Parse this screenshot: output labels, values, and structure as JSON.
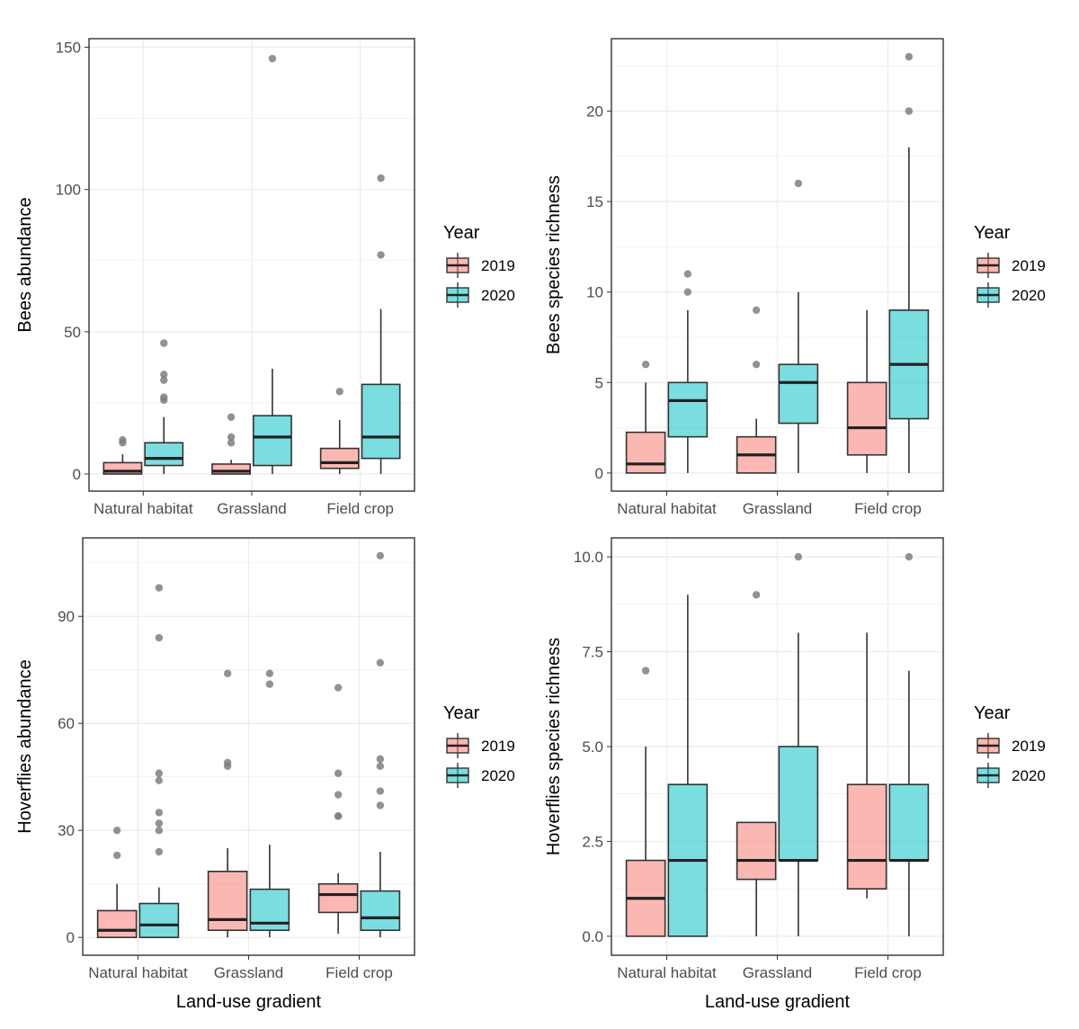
{
  "xlabel": "Land-use gradient",
  "colors": {
    "fill_2019": "#F8766D",
    "fill_2020": "#00BFC4",
    "outlier": "#7f7f7f",
    "grid": "#ebebeb",
    "panel_border": "#333333",
    "line": "#333333",
    "text": "#4d4d4d",
    "title_text": "#000000"
  },
  "chart_data": [
    {
      "type": "boxplot",
      "title": "",
      "ylabel": "Bees abundance",
      "xlabel": "",
      "categories": [
        "Natural habitat",
        "Grassland",
        "Field crop"
      ],
      "ylim": [
        -6,
        153
      ],
      "yticks": [
        0,
        50,
        100,
        150
      ],
      "ytick_labels": [
        "0",
        "50",
        "100",
        "150"
      ],
      "grid": true,
      "legend": {
        "title": "Year",
        "position": "right"
      },
      "series": [
        {
          "name": "2019",
          "boxes": [
            {
              "min": 0,
              "q1": 0,
              "median": 1,
              "q3": 4,
              "max": 7,
              "outliers": [
                11,
                12
              ]
            },
            {
              "min": 0,
              "q1": 0,
              "median": 1,
              "q3": 3.5,
              "max": 5,
              "outliers": [
                11,
                13,
                20
              ]
            },
            {
              "min": 0,
              "q1": 2,
              "median": 4,
              "q3": 9,
              "max": 19,
              "outliers": [
                29
              ]
            }
          ]
        },
        {
          "name": "2020",
          "boxes": [
            {
              "min": 0,
              "q1": 3,
              "median": 5.5,
              "q3": 11,
              "max": 20,
              "outliers": [
                26,
                27,
                33,
                35,
                46
              ]
            },
            {
              "min": 0,
              "q1": 3,
              "median": 13,
              "q3": 20.5,
              "max": 37,
              "outliers": [
                146
              ]
            },
            {
              "min": 0,
              "q1": 5.5,
              "median": 13,
              "q3": 31.5,
              "max": 58,
              "outliers": [
                77,
                104
              ]
            }
          ]
        }
      ]
    },
    {
      "type": "boxplot",
      "title": "",
      "ylabel": "Bees species richness",
      "xlabel": "",
      "categories": [
        "Natural habitat",
        "Grassland",
        "Field crop"
      ],
      "ylim": [
        -1,
        24
      ],
      "yticks": [
        0,
        5,
        10,
        15,
        20
      ],
      "ytick_labels": [
        "0",
        "5",
        "10",
        "15",
        "20"
      ],
      "grid": true,
      "legend": {
        "title": "Year",
        "position": "right"
      },
      "series": [
        {
          "name": "2019",
          "boxes": [
            {
              "min": 0,
              "q1": 0,
              "median": 0.5,
              "q3": 2.25,
              "max": 5,
              "outliers": [
                6
              ]
            },
            {
              "min": 0,
              "q1": 0,
              "median": 1,
              "q3": 2,
              "max": 3,
              "outliers": [
                6,
                9
              ]
            },
            {
              "min": 0,
              "q1": 1,
              "median": 2.5,
              "q3": 5,
              "max": 9,
              "outliers": []
            }
          ]
        },
        {
          "name": "2020",
          "boxes": [
            {
              "min": 0,
              "q1": 2,
              "median": 4,
              "q3": 5,
              "max": 9,
              "outliers": [
                10,
                11
              ]
            },
            {
              "min": 0,
              "q1": 2.75,
              "median": 5,
              "q3": 6,
              "max": 10,
              "outliers": [
                16
              ]
            },
            {
              "min": 0,
              "q1": 3,
              "median": 6,
              "q3": 9,
              "max": 18,
              "outliers": [
                20,
                23
              ]
            }
          ]
        }
      ]
    },
    {
      "type": "boxplot",
      "title": "",
      "ylabel": "Hoverflies abundance",
      "xlabel": "Land-use gradient",
      "categories": [
        "Natural habitat",
        "Grassland",
        "Field crop"
      ],
      "ylim": [
        -5,
        112
      ],
      "yticks": [
        0,
        30,
        60,
        90
      ],
      "ytick_labels": [
        "0",
        "30",
        "60",
        "90"
      ],
      "grid": true,
      "legend": {
        "title": "Year",
        "position": "right"
      },
      "series": [
        {
          "name": "2019",
          "boxes": [
            {
              "min": 0,
              "q1": 0,
              "median": 2,
              "q3": 7.5,
              "max": 15,
              "outliers": [
                23,
                30
              ]
            },
            {
              "min": 0,
              "q1": 2,
              "median": 5,
              "q3": 18.5,
              "max": 25,
              "outliers": [
                48,
                49,
                74
              ]
            },
            {
              "min": 1,
              "q1": 7,
              "median": 12,
              "q3": 15,
              "max": 18,
              "outliers": [
                34,
                34,
                40,
                46,
                70
              ]
            }
          ]
        },
        {
          "name": "2020",
          "boxes": [
            {
              "min": 0,
              "q1": 0,
              "median": 3.5,
              "q3": 9.5,
              "max": 14,
              "outliers": [
                24,
                30,
                32,
                35,
                44,
                46,
                84,
                98
              ]
            },
            {
              "min": 0,
              "q1": 2,
              "median": 4,
              "q3": 13.5,
              "max": 26,
              "outliers": [
                71,
                74
              ]
            },
            {
              "min": 0,
              "q1": 2,
              "median": 5.5,
              "q3": 13,
              "max": 24,
              "outliers": [
                37,
                41,
                48,
                50,
                77,
                107
              ]
            }
          ]
        }
      ]
    },
    {
      "type": "boxplot",
      "title": "",
      "ylabel": "Hoverflies species richness",
      "xlabel": "Land-use gradient",
      "categories": [
        "Natural habitat",
        "Grassland",
        "Field crop"
      ],
      "ylim": [
        -0.5,
        10.5
      ],
      "yticks": [
        0,
        2.5,
        5,
        7.5,
        10
      ],
      "ytick_labels": [
        "0.0",
        "2.5",
        "5.0",
        "7.5",
        "10.0"
      ],
      "grid": true,
      "legend": {
        "title": "Year",
        "position": "right"
      },
      "series": [
        {
          "name": "2019",
          "boxes": [
            {
              "min": 0,
              "q1": 0,
              "median": 1,
              "q3": 2,
              "max": 5,
              "outliers": [
                7
              ]
            },
            {
              "min": 0,
              "q1": 1.5,
              "median": 2,
              "q3": 3,
              "max": 3,
              "outliers": [
                9
              ]
            },
            {
              "min": 1,
              "q1": 1.25,
              "median": 2,
              "q3": 4,
              "max": 8,
              "outliers": []
            }
          ]
        },
        {
          "name": "2020",
          "boxes": [
            {
              "min": 0,
              "q1": 0,
              "median": 2,
              "q3": 4,
              "max": 9,
              "outliers": []
            },
            {
              "min": 0,
              "q1": 2,
              "median": 2,
              "q3": 5,
              "max": 8,
              "outliers": [
                10
              ]
            },
            {
              "min": 0,
              "q1": 2,
              "median": 2,
              "q3": 4,
              "max": 7,
              "outliers": [
                10
              ]
            }
          ]
        }
      ]
    }
  ]
}
